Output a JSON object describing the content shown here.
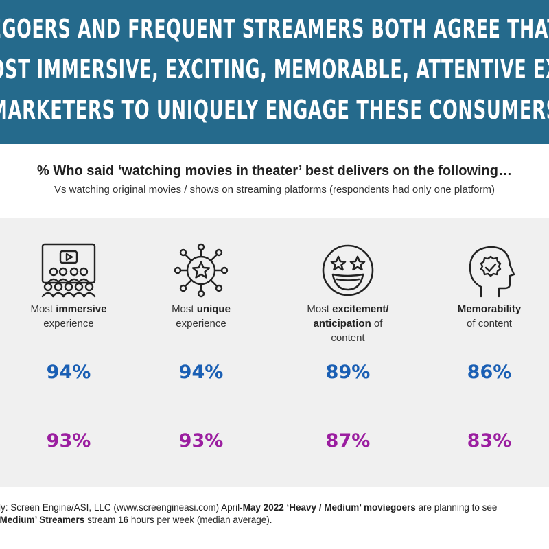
{
  "header": {
    "line1": "EGOERS AND FREQUENT STREAMERS BOTH AGREE THAT",
    "line2": "OST IMMERSIVE, EXCITING, MEMORABLE, ATTENTIVE EX",
    "line3": "MARKETERS TO UNIQUELY ENGAGE THESE CONSUMERS"
  },
  "colors": {
    "banner": "#256a8c",
    "series1": "#1a5fb4",
    "series2": "#9b1ea0",
    "panel": "#f0f0f0"
  },
  "chart_data": {
    "type": "table",
    "title": "% Who said ‘watching movies in theater’ best delivers on the following…",
    "subtitle": "Vs watching original movies / shows on streaming platforms (respondents had only one platform)",
    "categories": [
      {
        "pre": "Most ",
        "bold": "immersive",
        "post": "",
        "line2": "experience",
        "icon": "audience-screen-icon"
      },
      {
        "pre": "Most ",
        "bold": "unique",
        "post": "",
        "line2": "experience",
        "icon": "star-network-icon"
      },
      {
        "pre": "Most ",
        "bold": "excitement/",
        "post": "",
        "line2_bold": "anticipation",
        "line2": " of",
        "line3": "content",
        "icon": "star-eyes-face-icon"
      },
      {
        "pre": "",
        "bold": "Memorability",
        "post": "",
        "line2": "of content",
        "icon": "head-checkmark-icon"
      }
    ],
    "series": [
      {
        "values": [
          94,
          94,
          89,
          86
        ],
        "labels": [
          "94%",
          "94%",
          "89%",
          "86%"
        ],
        "color": "#1a5fb4"
      },
      {
        "values": [
          93,
          93,
          87,
          83
        ],
        "labels": [
          "93%",
          "93%",
          "87%",
          "83%"
        ],
        "color": "#9b1ea0"
      }
    ]
  },
  "footer": {
    "line1_a": "udy: Screen Engine/ASI, LLC (www.screengineasi.com) April-",
    "line1_b": "May 2022 ‘Heavy / Medium’ moviegoers",
    "line1_c": " are planning to see",
    "line2_a": "/ Medium’ Streamers",
    "line2_b": " stream ",
    "line2_c": "16",
    "line2_d": " hours per week (median average)."
  }
}
